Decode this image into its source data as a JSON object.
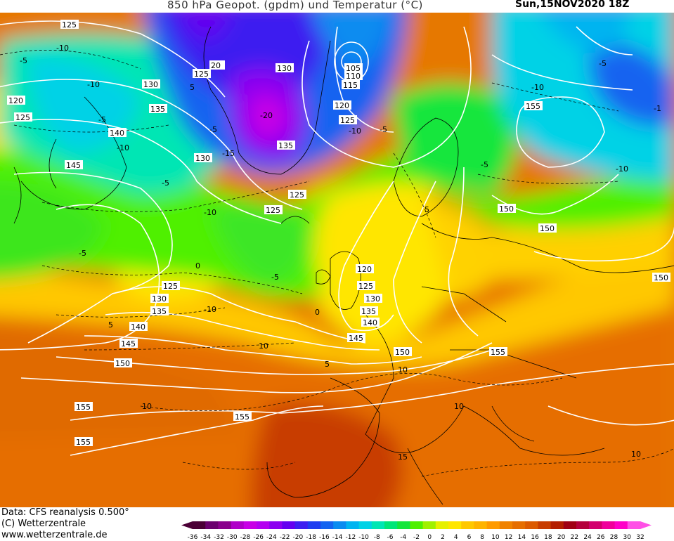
{
  "header": {
    "title": "850 hPa Geopot. (gpdm) und Temperatur (°C)",
    "datestamp": "Sun,15NOV2020 18Z"
  },
  "footer": {
    "data_source": "Data: CFS reanalysis 0.500°",
    "copyright": "(C) Wetterzentrale",
    "website": "www.wetterzentrale.de"
  },
  "legend": {
    "ticks": [
      "-36",
      "-34",
      "-32",
      "-30",
      "-28",
      "-26",
      "-24",
      "-22",
      "-20",
      "-18",
      "-16",
      "-14",
      "-12",
      "-10",
      "-8",
      "-6",
      "-4",
      "-2",
      "0",
      "2",
      "4",
      "6",
      "8",
      "10",
      "12",
      "14",
      "16",
      "18",
      "20",
      "22",
      "24",
      "26",
      "28",
      "30",
      "32"
    ],
    "colors": [
      "#4b0036",
      "#6b006e",
      "#8a008c",
      "#b000c8",
      "#c800e6",
      "#b400f0",
      "#8c00f0",
      "#6400f0",
      "#3c1ef0",
      "#1e3cf0",
      "#1464f0",
      "#0a8cf0",
      "#00b4f0",
      "#00d2e6",
      "#00e6b4",
      "#00e678",
      "#14e63c",
      "#50f000",
      "#a0f000",
      "#e6f000",
      "#ffe600",
      "#ffc800",
      "#ffb400",
      "#ff9b00",
      "#f08200",
      "#e66e00",
      "#dc5a00",
      "#c83c00",
      "#b41e00",
      "#a00014",
      "#b4003c",
      "#d2006e",
      "#f0009b",
      "#ff00c8",
      "#ff50e6"
    ]
  },
  "map": {
    "contour_labels": [
      "125",
      "120",
      "125",
      "130",
      "135",
      "140",
      "145",
      "130",
      "135",
      "125",
      "125",
      "125",
      "130",
      "135",
      "140",
      "145",
      "150",
      "155",
      "155",
      "155",
      "120",
      "125",
      "130",
      "135",
      "140",
      "145",
      "150",
      "155",
      "150",
      "150",
      "155",
      "150",
      "105",
      "110",
      "115",
      "120",
      "125",
      "130",
      "135",
      "125",
      "20"
    ],
    "temp_labels": [
      "-10",
      "-5",
      "-10",
      "-5",
      "-10",
      "-5",
      "-10",
      "0",
      "-5",
      "-10",
      "5",
      "10",
      "-5",
      "5",
      "10",
      "-15",
      "-20",
      "5",
      "-10",
      "-1",
      "-10",
      "-5",
      "-5",
      "-10",
      "-5",
      "0",
      "5",
      "10",
      "10",
      "15",
      "10",
      "-5"
    ]
  }
}
